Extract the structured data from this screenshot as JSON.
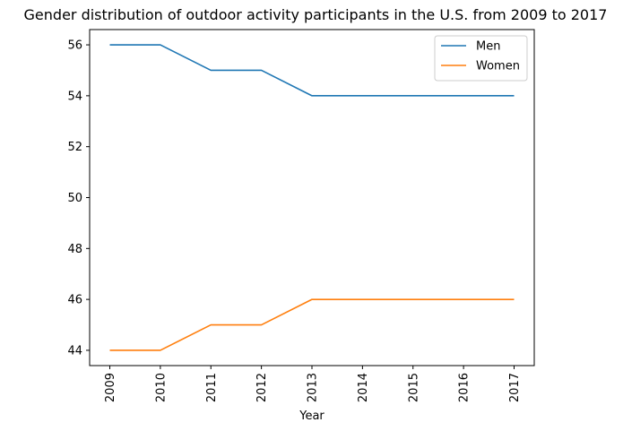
{
  "chart_data": {
    "type": "line",
    "title": "Gender distribution of outdoor activity participants in the U.S. from 2009 to 2017",
    "xlabel": "Year",
    "ylabel": "",
    "categories": [
      "2009",
      "2010",
      "2011",
      "2012",
      "2013",
      "2014",
      "2015",
      "2016",
      "2017"
    ],
    "series": [
      {
        "name": "Men",
        "color": "#1f77b4",
        "values": [
          56,
          56,
          55,
          55,
          54,
          54,
          54,
          54,
          54
        ]
      },
      {
        "name": "Women",
        "color": "#ff7f0e",
        "values": [
          44,
          44,
          45,
          45,
          46,
          46,
          46,
          46,
          46
        ]
      }
    ],
    "ylim": [
      43.4,
      56.6
    ],
    "yticks": [
      44,
      46,
      48,
      50,
      52,
      54,
      56
    ],
    "grid": false,
    "legend_position": "top-right"
  }
}
